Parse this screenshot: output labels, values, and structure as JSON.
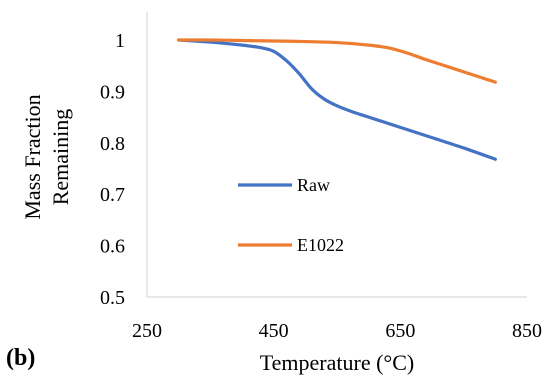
{
  "chart_data": {
    "type": "line",
    "xlabel": "Temperature (°C)",
    "ylabel_lines": [
      "Mass Fraction",
      "Remaining"
    ],
    "panel_label": "(b)",
    "xlim": [
      250,
      850
    ],
    "ylim": [
      0.5,
      1.0
    ],
    "x_ticks": [
      250,
      450,
      650,
      850
    ],
    "x_tick_labels": [
      "250",
      "450",
      "650",
      "850"
    ],
    "y_ticks": [
      0.5,
      0.6,
      0.7,
      0.8,
      0.9,
      1.0
    ],
    "y_tick_labels": [
      "0.5",
      "0.6",
      "0.7",
      "0.8",
      "0.9",
      "1"
    ],
    "grid": false,
    "legend_position": "inside-lower-middle",
    "series": [
      {
        "name": "Raw",
        "color": "#4472C4",
        "points": [
          [
            300,
            1.0
          ],
          [
            350,
            0.996
          ],
          [
            400,
            0.99
          ],
          [
            430,
            0.985
          ],
          [
            450,
            0.978
          ],
          [
            470,
            0.96
          ],
          [
            490,
            0.935
          ],
          [
            510,
            0.905
          ],
          [
            530,
            0.885
          ],
          [
            550,
            0.872
          ],
          [
            575,
            0.86
          ],
          [
            600,
            0.85
          ],
          [
            650,
            0.83
          ],
          [
            700,
            0.81
          ],
          [
            750,
            0.79
          ],
          [
            800,
            0.768
          ]
        ]
      },
      {
        "name": "E1022",
        "color": "#ED7D31",
        "points": [
          [
            300,
            1.0
          ],
          [
            350,
            1.0
          ],
          [
            400,
            0.999
          ],
          [
            450,
            0.998
          ],
          [
            500,
            0.997
          ],
          [
            550,
            0.995
          ],
          [
            600,
            0.99
          ],
          [
            630,
            0.985
          ],
          [
            660,
            0.975
          ],
          [
            690,
            0.962
          ],
          [
            720,
            0.95
          ],
          [
            750,
            0.938
          ],
          [
            780,
            0.926
          ],
          [
            800,
            0.918
          ]
        ]
      }
    ]
  }
}
